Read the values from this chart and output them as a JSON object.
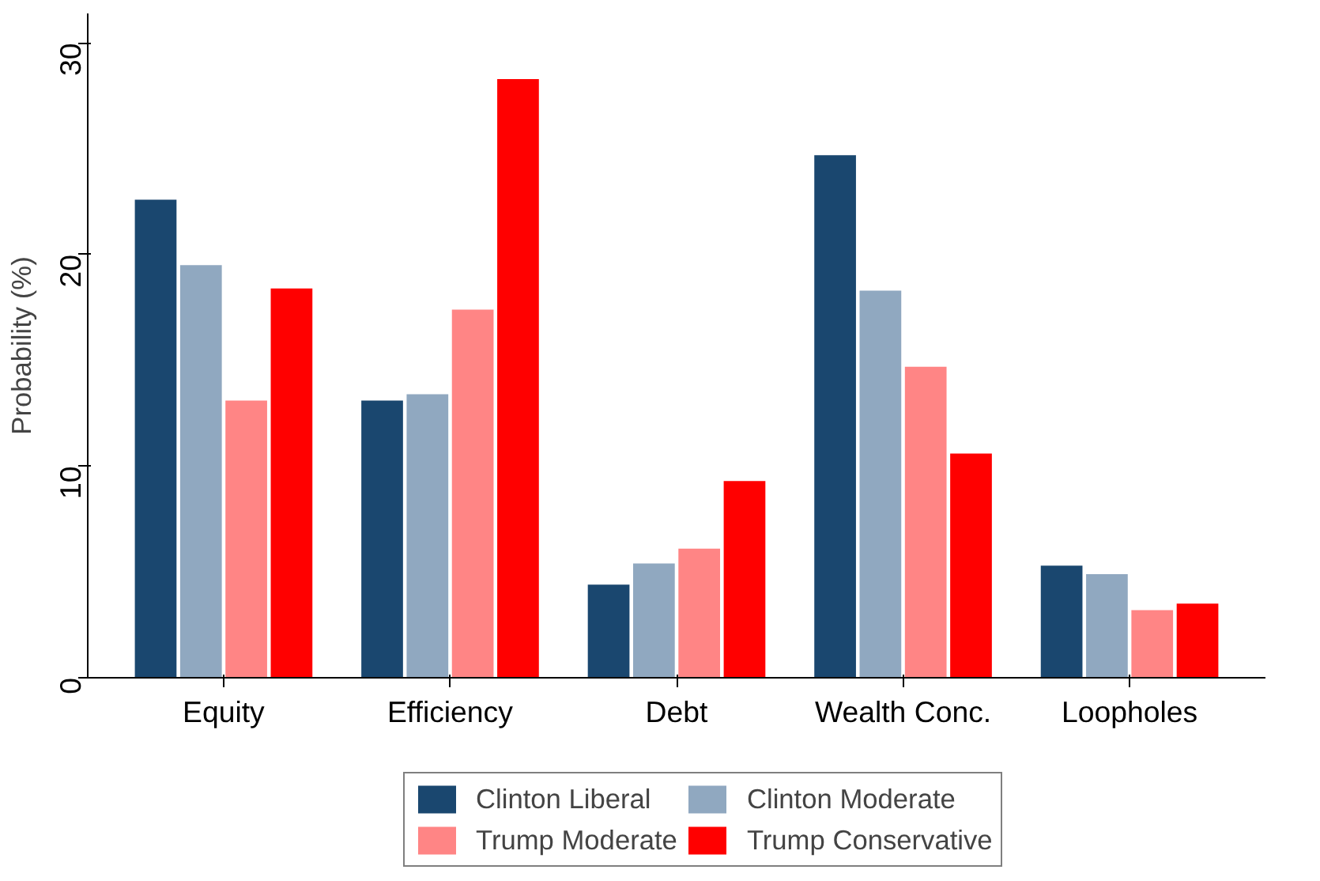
{
  "chart_data": {
    "type": "bar",
    "ylabel": "Probability (%)",
    "categories": [
      "Equity",
      "Efficiency",
      "Debt",
      "Wealth Conc.",
      "Loopholes"
    ],
    "series": [
      {
        "name": "Clinton Liberal",
        "color": "#1a476f",
        "values": [
          22.6,
          13.1,
          4.4,
          24.7,
          5.3
        ]
      },
      {
        "name": "Clinton Moderate",
        "color": "#90a8c0",
        "values": [
          19.5,
          13.4,
          5.4,
          18.3,
          4.9
        ]
      },
      {
        "name": "Trump Moderate",
        "color": "#ff8585",
        "values": [
          13.1,
          17.4,
          6.1,
          14.7,
          3.2
        ]
      },
      {
        "name": "Trump Conservative",
        "color": "#ff0000",
        "values": [
          18.4,
          28.3,
          9.3,
          10.6,
          3.5
        ]
      }
    ],
    "ylim": [
      0,
      31.4
    ],
    "yticks": [
      0,
      10,
      20,
      30
    ],
    "grid": false,
    "legend": "bottom"
  }
}
